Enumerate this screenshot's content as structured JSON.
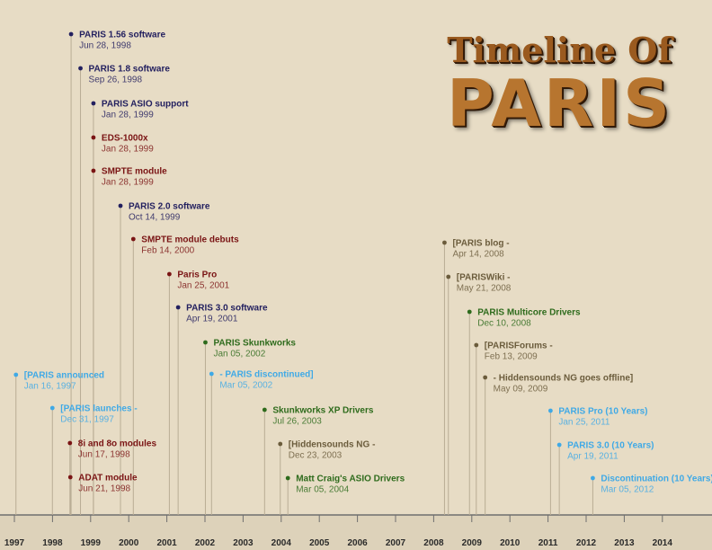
{
  "title": {
    "line1": "Timeline Of",
    "line2": "PARIS"
  },
  "colors": {
    "background": "#e7dcc5",
    "navy": "#23205f",
    "maroon": "#7a1414",
    "green": "#2e6b1c",
    "olive": "#6b5c3c",
    "lightblue": "#3fa9e6",
    "axis": "#6e6e6e"
  },
  "chart_data": {
    "type": "timeline",
    "x_ticks": [
      "1997",
      "1998",
      "1999",
      "2000",
      "2001",
      "2002",
      "2003",
      "2004",
      "2005",
      "2006",
      "2007",
      "2008",
      "2009",
      "2010",
      "2011",
      "2012",
      "2013",
      "2014"
    ],
    "events": [
      {
        "label": "PARIS 1.56 software",
        "date": "Jun 28, 1998",
        "value": "1998-06-28",
        "color": "navy"
      },
      {
        "label": "PARIS 1.8 software",
        "date": "Sep 26, 1998",
        "value": "1998-09-26",
        "color": "navy"
      },
      {
        "label": "PARIS ASIO support",
        "date": "Jan 28, 1999",
        "value": "1999-01-28",
        "color": "navy"
      },
      {
        "label": "EDS-1000x",
        "date": "Jan 28, 1999",
        "value": "1999-01-28",
        "color": "maroon"
      },
      {
        "label": "SMPTE module",
        "date": "Jan 28, 1999",
        "value": "1999-01-28",
        "color": "maroon"
      },
      {
        "label": "PARIS 2.0 software",
        "date": "Oct 14, 1999",
        "value": "1999-10-14",
        "color": "navy"
      },
      {
        "label": "SMPTE module debuts",
        "date": "Feb 14, 2000",
        "value": "2000-02-14",
        "color": "maroon"
      },
      {
        "label": "Paris Pro",
        "date": "Jan 25, 2001",
        "value": "2001-01-25",
        "color": "maroon"
      },
      {
        "label": "PARIS 3.0 software",
        "date": "Apr 19, 2001",
        "value": "2001-04-19",
        "color": "navy"
      },
      {
        "label": "PARIS Skunkworks",
        "date": "Jan 05, 2002",
        "value": "2002-01-05",
        "color": "green"
      },
      {
        "label": "[PARIS announced",
        "date": "Jan 16, 1997",
        "value": "1997-01-16",
        "color": "lightblue"
      },
      {
        "label": "- PARIS discontinued]",
        "date": "Mar 05, 2002",
        "value": "2002-03-05",
        "color": "lightblue"
      },
      {
        "label": "[PARIS launches -",
        "date": "Dec 31, 1997",
        "value": "1997-12-31",
        "color": "lightblue"
      },
      {
        "label": "Skunkworks XP Drivers",
        "date": "Jul 26, 2003",
        "value": "2003-07-26",
        "color": "green"
      },
      {
        "label": "8i and 8o modules",
        "date": "Jun 17, 1998",
        "value": "1998-06-17",
        "color": "maroon"
      },
      {
        "label": "[Hiddensounds NG -",
        "date": "Dec 23, 2003",
        "value": "2003-12-23",
        "color": "olive"
      },
      {
        "label": "ADAT module",
        "date": "Jun 21, 1998",
        "value": "1998-06-21",
        "color": "maroon"
      },
      {
        "label": "Matt Craig's ASIO Drivers",
        "date": "Mar 05, 2004",
        "value": "2004-03-05",
        "color": "green"
      },
      {
        "label": "[PARIS blog -",
        "date": "Apr 14, 2008",
        "value": "2008-04-14",
        "color": "olive"
      },
      {
        "label": "[PARISWiki -",
        "date": "May 21, 2008",
        "value": "2008-05-21",
        "color": "olive"
      },
      {
        "label": "PARIS Multicore Drivers",
        "date": "Dec 10, 2008",
        "value": "2008-12-10",
        "color": "green"
      },
      {
        "label": "[PARISForums -",
        "date": "Feb 13, 2009",
        "value": "2009-02-13",
        "color": "olive"
      },
      {
        "label": "- Hiddensounds NG goes offline]",
        "date": "May 09, 2009",
        "value": "2009-05-09",
        "color": "olive"
      },
      {
        "label": "PARIS Pro (10 Years)",
        "date": "Jan 25, 2011",
        "value": "2011-01-25",
        "color": "lightblue"
      },
      {
        "label": "PARIS 3.0 (10 Years)",
        "date": "Apr 19, 2011",
        "value": "2011-04-19",
        "color": "lightblue"
      },
      {
        "label": "Discontinuation (10 Years)",
        "date": "Mar 05, 2012",
        "value": "2012-03-05",
        "color": "lightblue"
      }
    ]
  }
}
